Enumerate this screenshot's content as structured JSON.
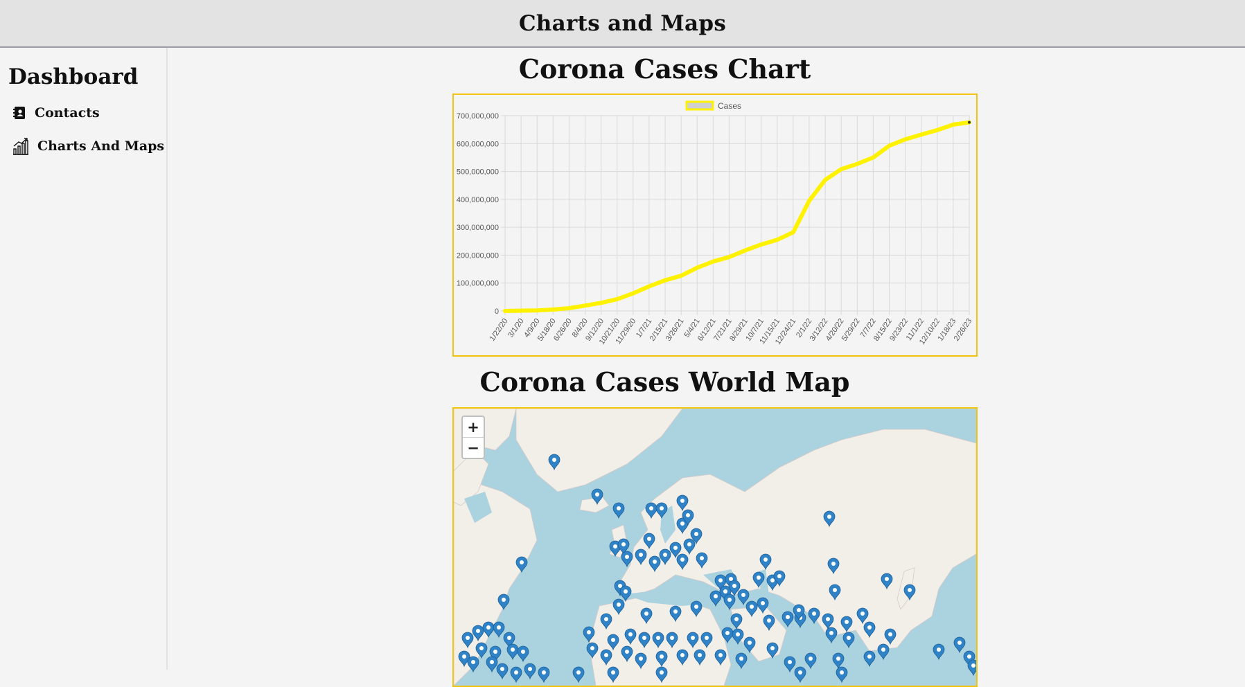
{
  "header": {
    "title": "Charts and Maps"
  },
  "sidebar": {
    "title": "Dashboard",
    "items": [
      {
        "label": "Contacts",
        "icon": "contacts-book-icon"
      },
      {
        "label": "Charts And Maps",
        "icon": "chart-icon"
      }
    ]
  },
  "chart_section": {
    "title": "Corona Cases Chart"
  },
  "map_section": {
    "title": "Corona Cases World Map",
    "zoom_in": "+",
    "zoom_out": "−"
  },
  "colors": {
    "accent_border": "#f2c40f",
    "line": "#fff200",
    "marker": "#2f83c6",
    "water": "#aad3df",
    "land": "#f2efe9"
  },
  "chart_data": {
    "type": "line",
    "title": "",
    "legend": "Cases",
    "legend_position": "top",
    "xlabel": "",
    "ylabel": "",
    "ylim": [
      0,
      700000000
    ],
    "y_ticks": [
      "0",
      "100,000,000",
      "200,000,000",
      "300,000,000",
      "400,000,000",
      "500,000,000",
      "600,000,000",
      "700,000,000"
    ],
    "x_tick_labels": [
      "1/22/20",
      "3/1/20",
      "4/9/20",
      "5/18/20",
      "6/26/20",
      "8/4/20",
      "9/12/20",
      "10/21/20",
      "11/29/20",
      "1/7/21",
      "2/15/21",
      "3/26/21",
      "5/4/21",
      "6/12/21",
      "7/21/21",
      "8/29/21",
      "10/7/21",
      "11/15/21",
      "12/24/21",
      "2/1/22",
      "3/12/22",
      "4/20/22",
      "5/29/22",
      "7/7/22",
      "8/15/22",
      "9/23/22",
      "11/1/22",
      "12/10/22",
      "1/18/23",
      "2/26/23"
    ],
    "series": [
      {
        "name": "Cases",
        "values": [
          0,
          900000,
          2000000,
          5000000,
          10000000,
          19000000,
          29000000,
          42000000,
          63000000,
          88000000,
          110000000,
          126000000,
          155000000,
          177000000,
          193000000,
          217000000,
          238000000,
          255000000,
          282000000,
          395000000,
          470000000,
          508000000,
          527000000,
          550000000,
          592000000,
          615000000,
          632000000,
          648000000,
          668000000,
          676000000
        ]
      }
    ]
  }
}
